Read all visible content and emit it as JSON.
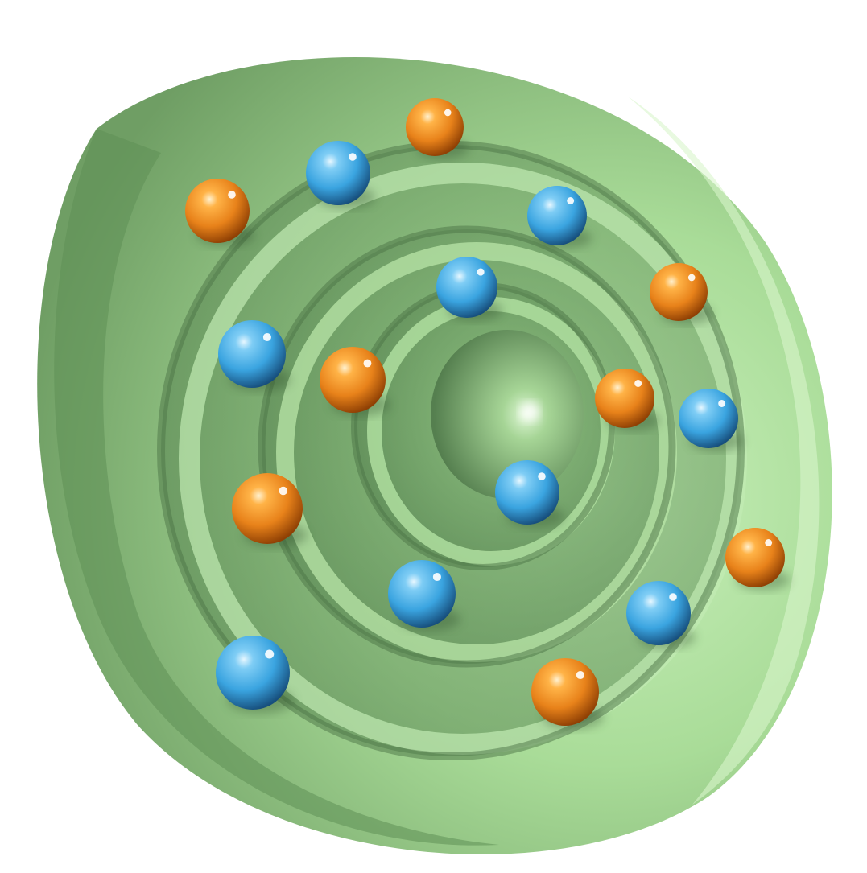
{
  "diagram": {
    "colors": {
      "background": "#ffffff",
      "shell_light": "#b7e6a9",
      "shell_mid": "#8fc57f",
      "shell_dark": "#5f8f56",
      "shell_shadow": "#4b7446",
      "particle_orange": "#e8821a",
      "particle_orange_dark": "#a94f05",
      "particle_blue": "#3aa4e0",
      "particle_blue_dark": "#1a5f93"
    },
    "shells": [
      {
        "name": "outer-shell"
      },
      {
        "name": "shell-3"
      },
      {
        "name": "shell-2"
      },
      {
        "name": "shell-1"
      },
      {
        "name": "core"
      }
    ],
    "particles": [
      {
        "kind": "orange"
      },
      {
        "kind": "blue"
      },
      {
        "kind": "orange"
      },
      {
        "kind": "blue"
      },
      {
        "kind": "blue"
      },
      {
        "kind": "orange"
      },
      {
        "kind": "blue"
      },
      {
        "kind": "orange"
      },
      {
        "kind": "orange"
      },
      {
        "kind": "blue"
      },
      {
        "kind": "blue"
      },
      {
        "kind": "orange"
      },
      {
        "kind": "orange"
      },
      {
        "kind": "blue"
      },
      {
        "kind": "blue"
      },
      {
        "kind": "blue"
      },
      {
        "kind": "orange"
      }
    ]
  }
}
